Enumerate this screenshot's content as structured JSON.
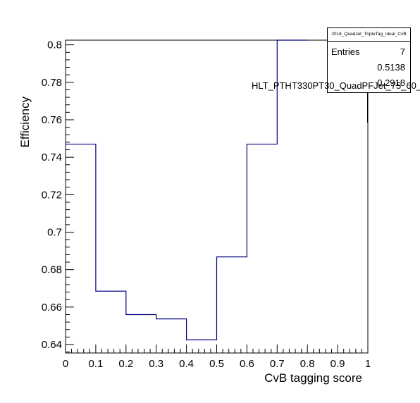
{
  "chart_data": {
    "type": "line",
    "style": "step-histogram",
    "bin_edges": [
      0,
      0.1,
      0.2,
      0.3,
      0.4,
      0.5,
      0.6,
      0.7,
      0.8,
      0.9,
      1.0
    ],
    "values": [
      0.747,
      0.6685,
      0.656,
      0.6537,
      0.6425,
      0.6868,
      0.747,
      0.8045,
      null,
      null
    ],
    "xlabel": "CvB tagging score",
    "ylabel": "Efficiency",
    "xlim": [
      0,
      1
    ],
    "ylim": [
      0.6355,
      0.8025
    ],
    "x_ticks": [
      "0",
      "0.1",
      "0.2",
      "0.3",
      "0.4",
      "0.5",
      "0.6",
      "0.7",
      "0.8",
      "0.9",
      "1"
    ],
    "y_ticks": [
      "0.64",
      "0.66",
      "0.68",
      "0.7",
      "0.72",
      "0.74",
      "0.76",
      "0.78",
      "0.8"
    ],
    "line_color": "#000080",
    "stats_box": {
      "title": "2018_QuadJet_TripleTag_Ideal_CvB",
      "entries_label": "Entries",
      "entries_value": "7",
      "mean_value": "0.5138",
      "std_value": "0.2918"
    },
    "overlay_label": "HLT_PTHT330PT30_QuadPFJet_75_60_"
  }
}
